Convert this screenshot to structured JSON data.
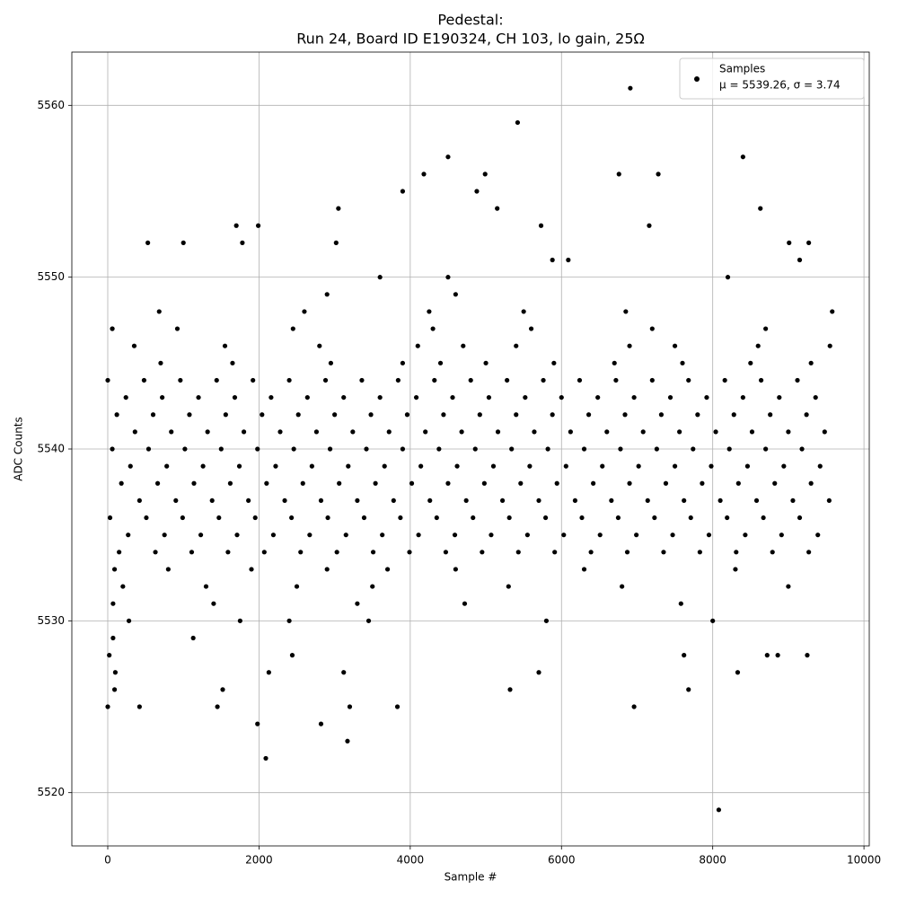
{
  "chart_data": {
    "type": "scatter",
    "title": "Pedestal:",
    "subtitle": "Run 24, Board ID E190324, CH 103, lo gain, 25Ω",
    "x_label": "Sample #",
    "y_label": "ADC Counts",
    "xlim": [
      -475,
      10070
    ],
    "ylim": [
      5516.9,
      5563.1
    ],
    "xticks": [
      0,
      2000,
      4000,
      6000,
      8000,
      10000
    ],
    "yticks": [
      5520,
      5530,
      5540,
      5550,
      5560
    ],
    "grid": true,
    "legend": "upper right",
    "legend_note": "μ = 5539.26, σ = 3.74",
    "series": [
      {
        "name": "Samples",
        "color": "#000000",
        "x": [
          0,
          480,
          960,
          1440,
          1920,
          2400,
          2880,
          3360,
          3840,
          4320,
          4800,
          5280,
          5760,
          6240,
          6720,
          7200,
          7680,
          8160,
          8640,
          9120,
          240,
          720,
          1200,
          1680,
          2160,
          2640,
          3120,
          3600,
          4080,
          4560,
          5040,
          5520,
          6000,
          6480,
          6960,
          7440,
          7920,
          8400,
          8880,
          9360,
          120,
          600,
          1080,
          1560,
          2040,
          2520,
          3000,
          3480,
          3960,
          4440,
          4920,
          5400,
          5880,
          6360,
          6840,
          7320,
          7800,
          8280,
          8760,
          9240,
          360,
          840,
          1320,
          1800,
          2280,
          2760,
          3240,
          3720,
          4200,
          4680,
          5160,
          5640,
          6120,
          6600,
          7080,
          7560,
          8040,
          8520,
          9000,
          9480,
          60,
          540,
          1020,
          1500,
          1980,
          2460,
          2940,
          3420,
          3900,
          4380,
          4860,
          5340,
          5820,
          6300,
          6780,
          7260,
          7740,
          8220,
          8700,
          9180,
          300,
          780,
          1260,
          1740,
          2220,
          2700,
          3180,
          3660,
          4140,
          4620,
          5100,
          5580,
          6060,
          6540,
          7020,
          7500,
          7980,
          8460,
          8940,
          9420,
          180,
          660,
          1140,
          1620,
          2100,
          2580,
          3060,
          3540,
          4020,
          4500,
          4980,
          5460,
          5940,
          6420,
          6900,
          7380,
          7860,
          8340,
          8820,
          9300,
          420,
          900,
          1380,
          1860,
          2340,
          2820,
          3300,
          3780,
          4260,
          4740,
          5220,
          5700,
          6180,
          6660,
          7140,
          7620,
          8100,
          8580,
          9060,
          9540,
          30,
          510,
          990,
          1470,
          1950,
          2430,
          2910,
          3390,
          3870,
          4350,
          4830,
          5310,
          5790,
          6270,
          6750,
          7230,
          7710,
          8190,
          8670,
          9150,
          270,
          750,
          1230,
          1710,
          2190,
          2670,
          3150,
          3630,
          4110,
          4590,
          5070,
          5550,
          6030,
          6510,
          6990,
          7470,
          7950,
          8430,
          8910,
          9390,
          150,
          630,
          1110,
          1590,
          2070,
          2550,
          3030,
          3510,
          3990,
          4470,
          4950,
          5430,
          5910,
          6390,
          6870,
          7350,
          7830,
          8310,
          8790,
          9270,
          700,
          1650,
          2950,
          3900,
          4400,
          5000,
          5900,
          6700,
          7600,
          8500,
          9300,
          350,
          1550,
          2800,
          4100,
          4700,
          5400,
          6900,
          7500,
          8600,
          9550,
          60,
          920,
          2450,
          4300,
          5600,
          7200,
          8700,
          680,
          2600,
          4250,
          5500,
          6850,
          9580,
          90,
          800,
          1900,
          2900,
          3700,
          4600,
          6300,
          8300,
          200,
          1300,
          2500,
          3500,
          5300,
          6800,
          9000,
          70,
          1400,
          3300,
          4720,
          7580,
          280,
          1750,
          2400,
          3450,
          5800,
          8000,
          2900,
          3600,
          4600,
          8200,
          4500,
          0,
          20,
          60,
          70,
          90,
          100,
          530,
          1000,
          420,
          1450,
          1520,
          1700,
          1780,
          1990,
          1980,
          2090,
          2130,
          2820,
          3020,
          3050,
          3170,
          3200,
          3830,
          3900,
          4180,
          4500,
          4880,
          4990,
          5150,
          5320,
          5420,
          5730,
          5880,
          6090,
          6910,
          6960,
          6760,
          7280,
          7160,
          7680,
          8080,
          8400,
          8630,
          8330,
          9010,
          9150,
          9270,
          9250,
          1130,
          2440,
          3120,
          5700,
          7620,
          8720,
          8860
        ],
        "values": [
          5544,
          5544,
          5544,
          5544,
          5544,
          5544,
          5544,
          5544,
          5544,
          5544,
          5544,
          5544,
          5544,
          5544,
          5544,
          5544,
          5544,
          5544,
          5544,
          5544,
          5543,
          5543,
          5543,
          5543,
          5543,
          5543,
          5543,
          5543,
          5543,
          5543,
          5543,
          5543,
          5543,
          5543,
          5543,
          5543,
          5543,
          5543,
          5543,
          5543,
          5542,
          5542,
          5542,
          5542,
          5542,
          5542,
          5542,
          5542,
          5542,
          5542,
          5542,
          5542,
          5542,
          5542,
          5542,
          5542,
          5542,
          5542,
          5542,
          5542,
          5541,
          5541,
          5541,
          5541,
          5541,
          5541,
          5541,
          5541,
          5541,
          5541,
          5541,
          5541,
          5541,
          5541,
          5541,
          5541,
          5541,
          5541,
          5541,
          5541,
          5540,
          5540,
          5540,
          5540,
          5540,
          5540,
          5540,
          5540,
          5540,
          5540,
          5540,
          5540,
          5540,
          5540,
          5540,
          5540,
          5540,
          5540,
          5540,
          5540,
          5539,
          5539,
          5539,
          5539,
          5539,
          5539,
          5539,
          5539,
          5539,
          5539,
          5539,
          5539,
          5539,
          5539,
          5539,
          5539,
          5539,
          5539,
          5539,
          5539,
          5538,
          5538,
          5538,
          5538,
          5538,
          5538,
          5538,
          5538,
          5538,
          5538,
          5538,
          5538,
          5538,
          5538,
          5538,
          5538,
          5538,
          5538,
          5538,
          5538,
          5537,
          5537,
          5537,
          5537,
          5537,
          5537,
          5537,
          5537,
          5537,
          5537,
          5537,
          5537,
          5537,
          5537,
          5537,
          5537,
          5537,
          5537,
          5537,
          5537,
          5536,
          5536,
          5536,
          5536,
          5536,
          5536,
          5536,
          5536,
          5536,
          5536,
          5536,
          5536,
          5536,
          5536,
          5536,
          5536,
          5536,
          5536,
          5536,
          5536,
          5535,
          5535,
          5535,
          5535,
          5535,
          5535,
          5535,
          5535,
          5535,
          5535,
          5535,
          5535,
          5535,
          5535,
          5535,
          5535,
          5535,
          5535,
          5535,
          5535,
          5534,
          5534,
          5534,
          5534,
          5534,
          5534,
          5534,
          5534,
          5534,
          5534,
          5534,
          5534,
          5534,
          5534,
          5534,
          5534,
          5534,
          5534,
          5534,
          5534,
          5545,
          5545,
          5545,
          5545,
          5545,
          5545,
          5545,
          5545,
          5545,
          5545,
          5545,
          5546,
          5546,
          5546,
          5546,
          5546,
          5546,
          5546,
          5546,
          5546,
          5546,
          5547,
          5547,
          5547,
          5547,
          5547,
          5547,
          5547,
          5548,
          5548,
          5548,
          5548,
          5548,
          5548,
          5533,
          5533,
          5533,
          5533,
          5533,
          5533,
          5533,
          5533,
          5532,
          5532,
          5532,
          5532,
          5532,
          5532,
          5532,
          5531,
          5531,
          5531,
          5531,
          5531,
          5530,
          5530,
          5530,
          5530,
          5530,
          5530,
          5549,
          5550,
          5549,
          5550,
          5550,
          5525,
          5528,
          5547,
          5529,
          5526,
          5527,
          5552,
          5552,
          5525,
          5525,
          5526,
          5553,
          5552,
          5553,
          5524,
          5522,
          5527,
          5524,
          5552,
          5554,
          5523,
          5525,
          5525,
          5555,
          5556,
          5557,
          5555,
          5556,
          5554,
          5526,
          5559,
          5553,
          5551,
          5551,
          5561,
          5525,
          5556,
          5556,
          5553,
          5526,
          5519,
          5557,
          5554,
          5527,
          5552,
          5551,
          5552,
          5528,
          5529,
          5528,
          5527,
          5527,
          5528,
          5528,
          5528
        ]
      }
    ]
  }
}
